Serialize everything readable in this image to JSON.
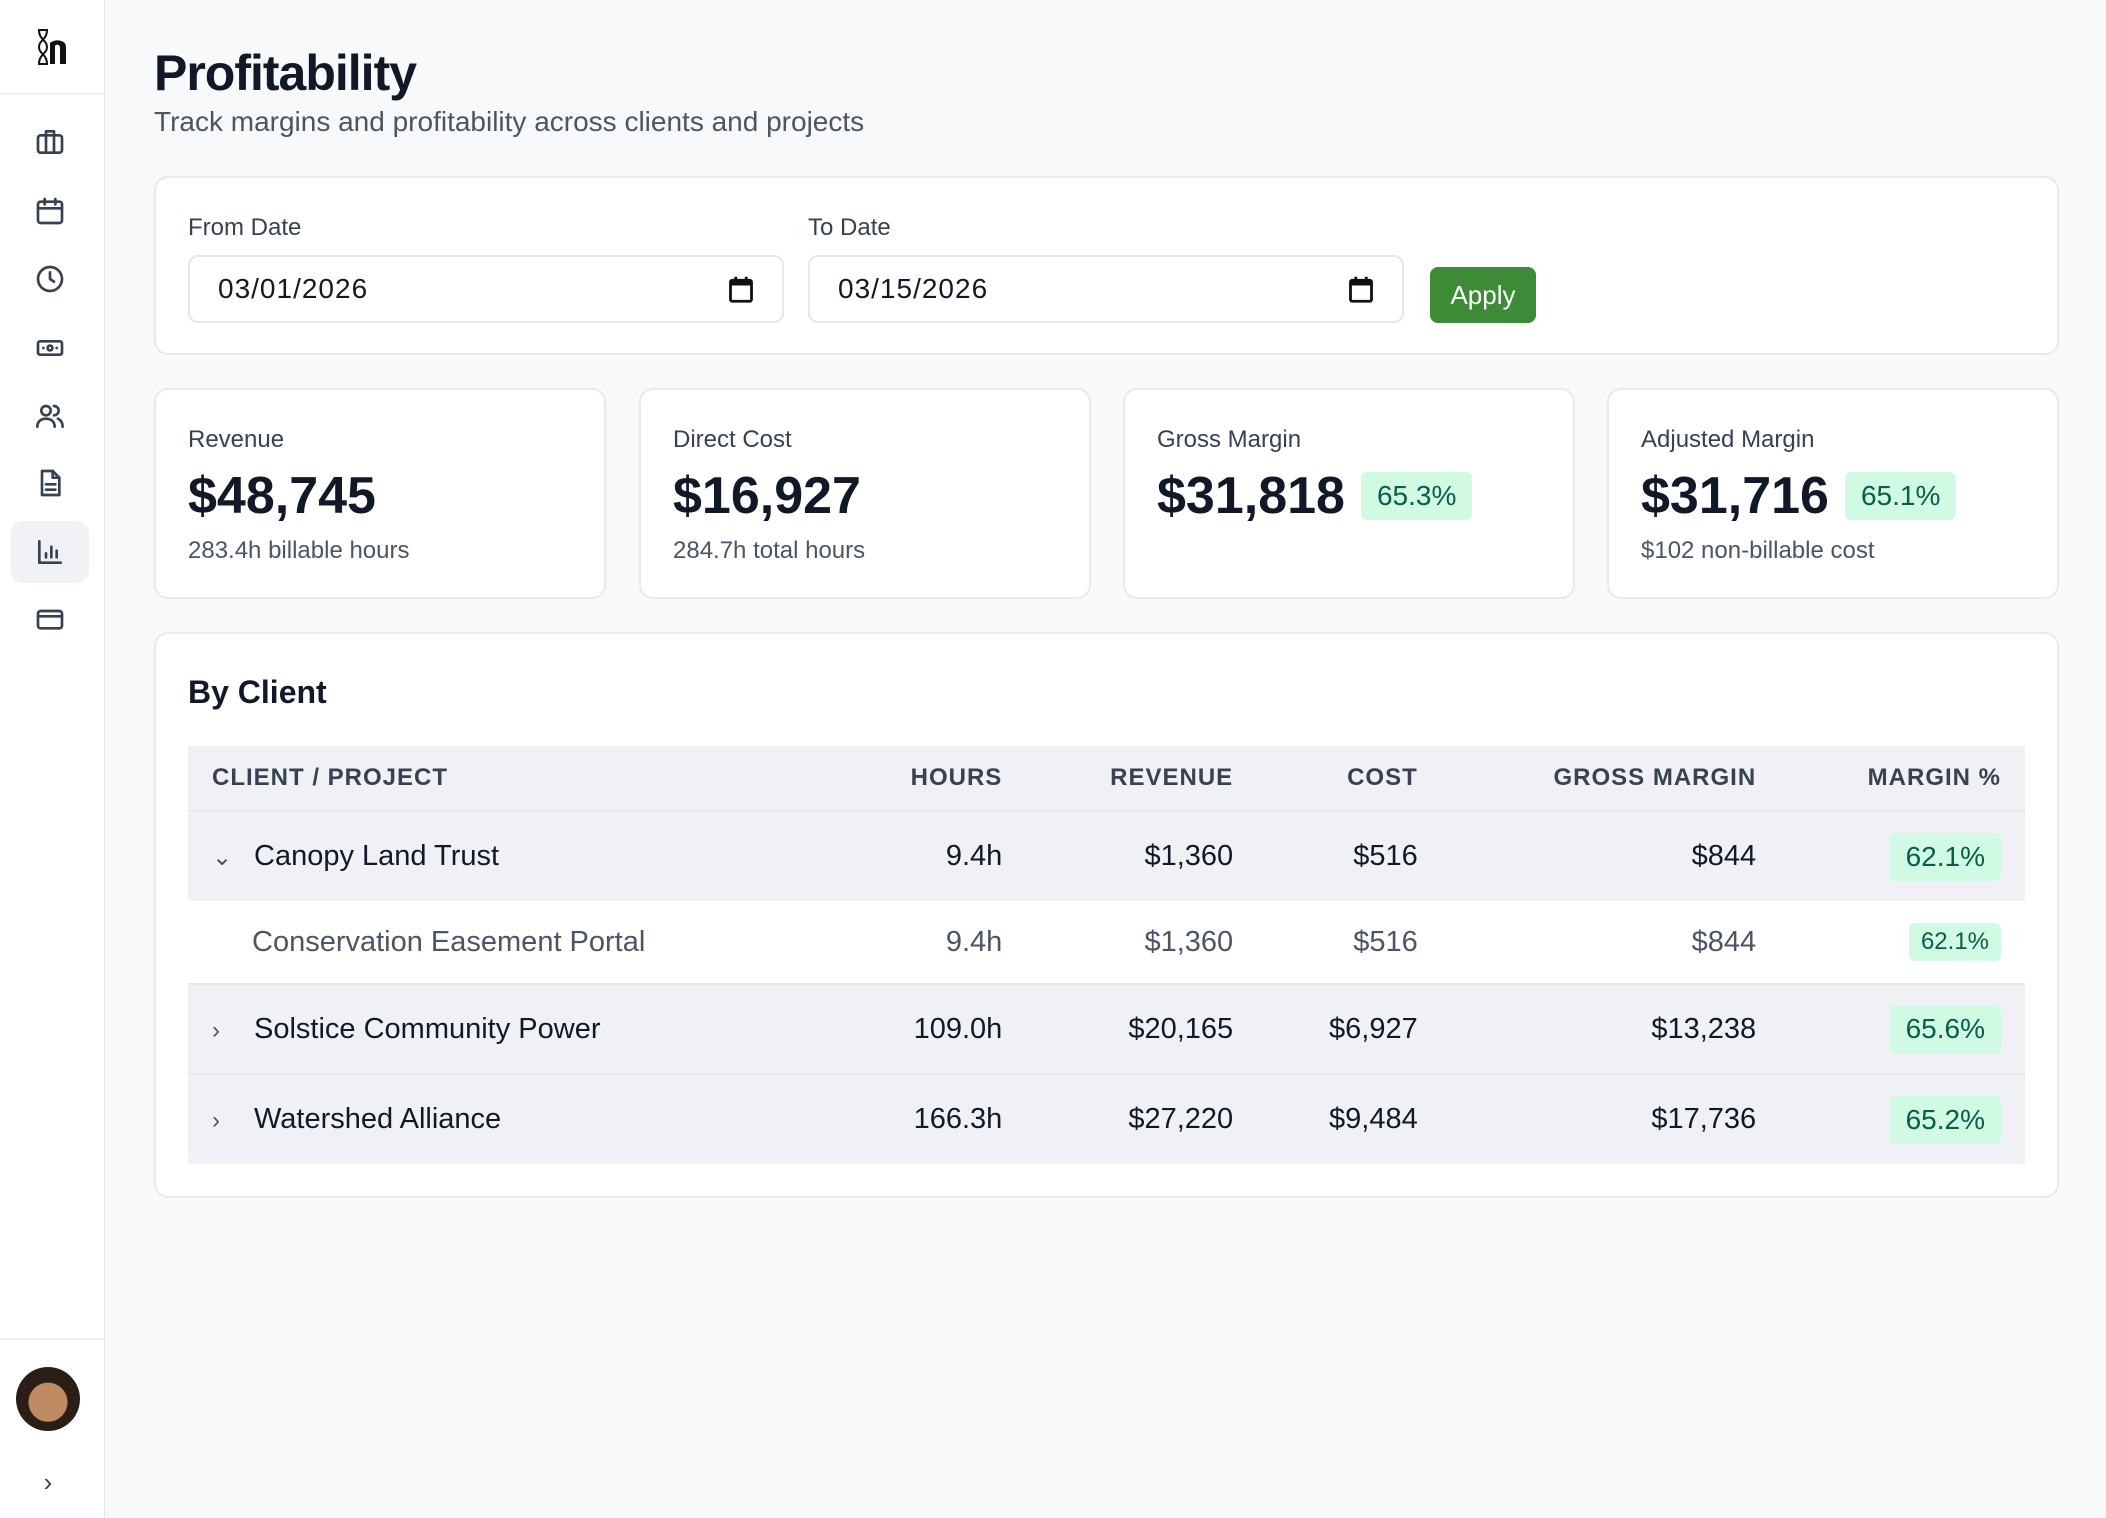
{
  "sidebar": {
    "items": [
      "briefcase-icon",
      "calendar-icon",
      "clock-icon",
      "money-icon",
      "users-icon",
      "document-icon",
      "chart-icon",
      "card-icon"
    ],
    "active": "chart-icon"
  },
  "header": {
    "title": "Profitability",
    "subtitle": "Track margins and profitability across clients and projects"
  },
  "filters": {
    "from_label": "From Date",
    "from_value": "03/01/2026",
    "to_label": "To Date",
    "to_value": "03/15/2026",
    "apply_label": "Apply"
  },
  "stats": [
    {
      "label": "Revenue",
      "value": "$48,745",
      "sub": "283.4h billable hours"
    },
    {
      "label": "Direct Cost",
      "value": "$16,927",
      "sub": "284.7h total hours"
    },
    {
      "label": "Gross Margin",
      "value": "$31,818",
      "badge": "65.3%"
    },
    {
      "label": "Adjusted Margin",
      "value": "$31,716",
      "badge": "65.1%",
      "sub": "$102 non-billable cost"
    }
  ],
  "by_client": {
    "title": "By Client",
    "columns": [
      "CLIENT / PROJECT",
      "HOURS",
      "REVENUE",
      "COST",
      "GROSS MARGIN",
      "MARGIN %"
    ],
    "rows": [
      {
        "name": "Canopy Land Trust",
        "hours": "9.4h",
        "revenue": "$1,360",
        "cost": "$516",
        "gm": "$844",
        "pct": "62.1%"
      },
      {
        "name": "Conservation Easement Portal",
        "hours": "9.4h",
        "revenue": "$1,360",
        "cost": "$516",
        "gm": "$844",
        "pct": "62.1%"
      },
      {
        "name": "Solstice Community Power",
        "hours": "109.0h",
        "revenue": "$20,165",
        "cost": "$6,927",
        "gm": "$13,238",
        "pct": "65.6%"
      },
      {
        "name": "Watershed Alliance",
        "hours": "166.3h",
        "revenue": "$27,220",
        "cost": "$9,484",
        "gm": "$17,736",
        "pct": "65.2%"
      }
    ]
  },
  "colors": {
    "accent": "#3d8b37",
    "badge_bg": "#d1fae5",
    "badge_text": "#065f46"
  }
}
